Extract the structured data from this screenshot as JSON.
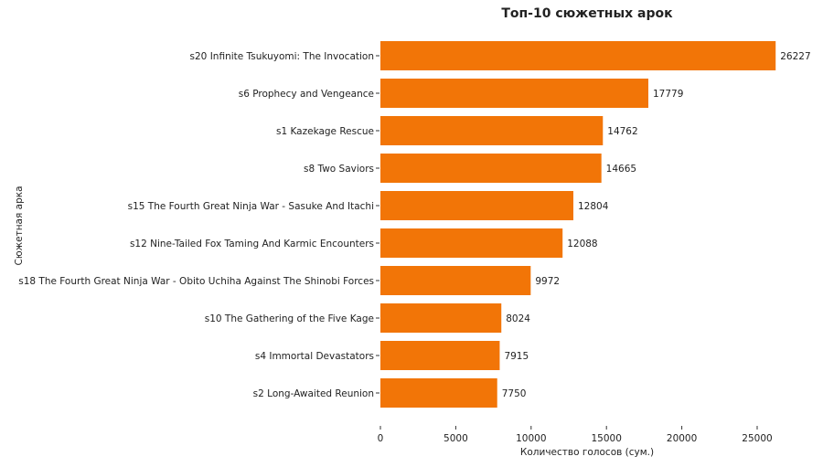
{
  "chart_data": {
    "type": "bar",
    "orientation": "horizontal",
    "title": "Топ-10 сюжетных арок",
    "xlabel": "Количество голосов (сум.)",
    "ylabel": "Сюжетная арка",
    "categories": [
      "s20 Infinite Tsukuyomi: The Invocation",
      "s6 Prophecy and Vengeance",
      "s1 Kazekage Rescue",
      "s8 Two Saviors",
      "s15 The Fourth Great Ninja War - Sasuke And Itachi",
      "s12 Nine-Tailed Fox Taming And Karmic Encounters",
      "s18 The Fourth Great Ninja War - Obito Uchiha Against The Shinobi Forces",
      "s10 The Gathering of the Five Kage",
      "s4 Immortal Devastators",
      "s2 Long-Awaited Reunion"
    ],
    "values": [
      26227,
      17779,
      14762,
      14665,
      12804,
      12088,
      9972,
      8024,
      7915,
      7750
    ],
    "xticks": [
      "0",
      "5000",
      "10000",
      "15000",
      "20000",
      "25000"
    ],
    "xtick_values": [
      0,
      5000,
      10000,
      15000,
      20000,
      25000
    ],
    "grid": false,
    "bar_color": "#f27507"
  }
}
